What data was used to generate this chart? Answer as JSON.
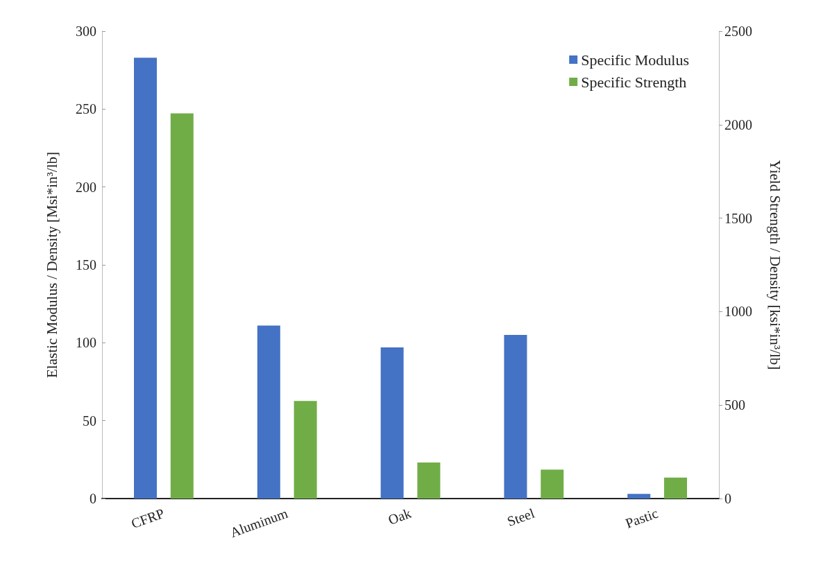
{
  "chart_data": {
    "type": "bar",
    "categories": [
      "CFRP",
      "Aluminum",
      "Oak",
      "Steel",
      "Pastic"
    ],
    "series": [
      {
        "name": "Specific Modulus",
        "color": "#4472c4",
        "values": [
          283,
          111,
          97,
          105,
          3
        ]
      },
      {
        "name": "Specific Strength",
        "color": "#70ad47",
        "values": [
          2060,
          522,
          193,
          155,
          112
        ],
        "axis": "y2"
      }
    ],
    "ylabel": "Elastic Modulus / Density [Msi*in³/lb]",
    "y2label": "Yield Strength / Density [ksi*in³/lb]",
    "ylim": [
      0,
      300
    ],
    "yticks": [
      0,
      50,
      100,
      150,
      200,
      250,
      300
    ],
    "y2lim": [
      0,
      2500
    ],
    "y2ticks": [
      0,
      500,
      1000,
      1500,
      2000,
      2500
    ],
    "legend": "top right",
    "grid": false
  }
}
